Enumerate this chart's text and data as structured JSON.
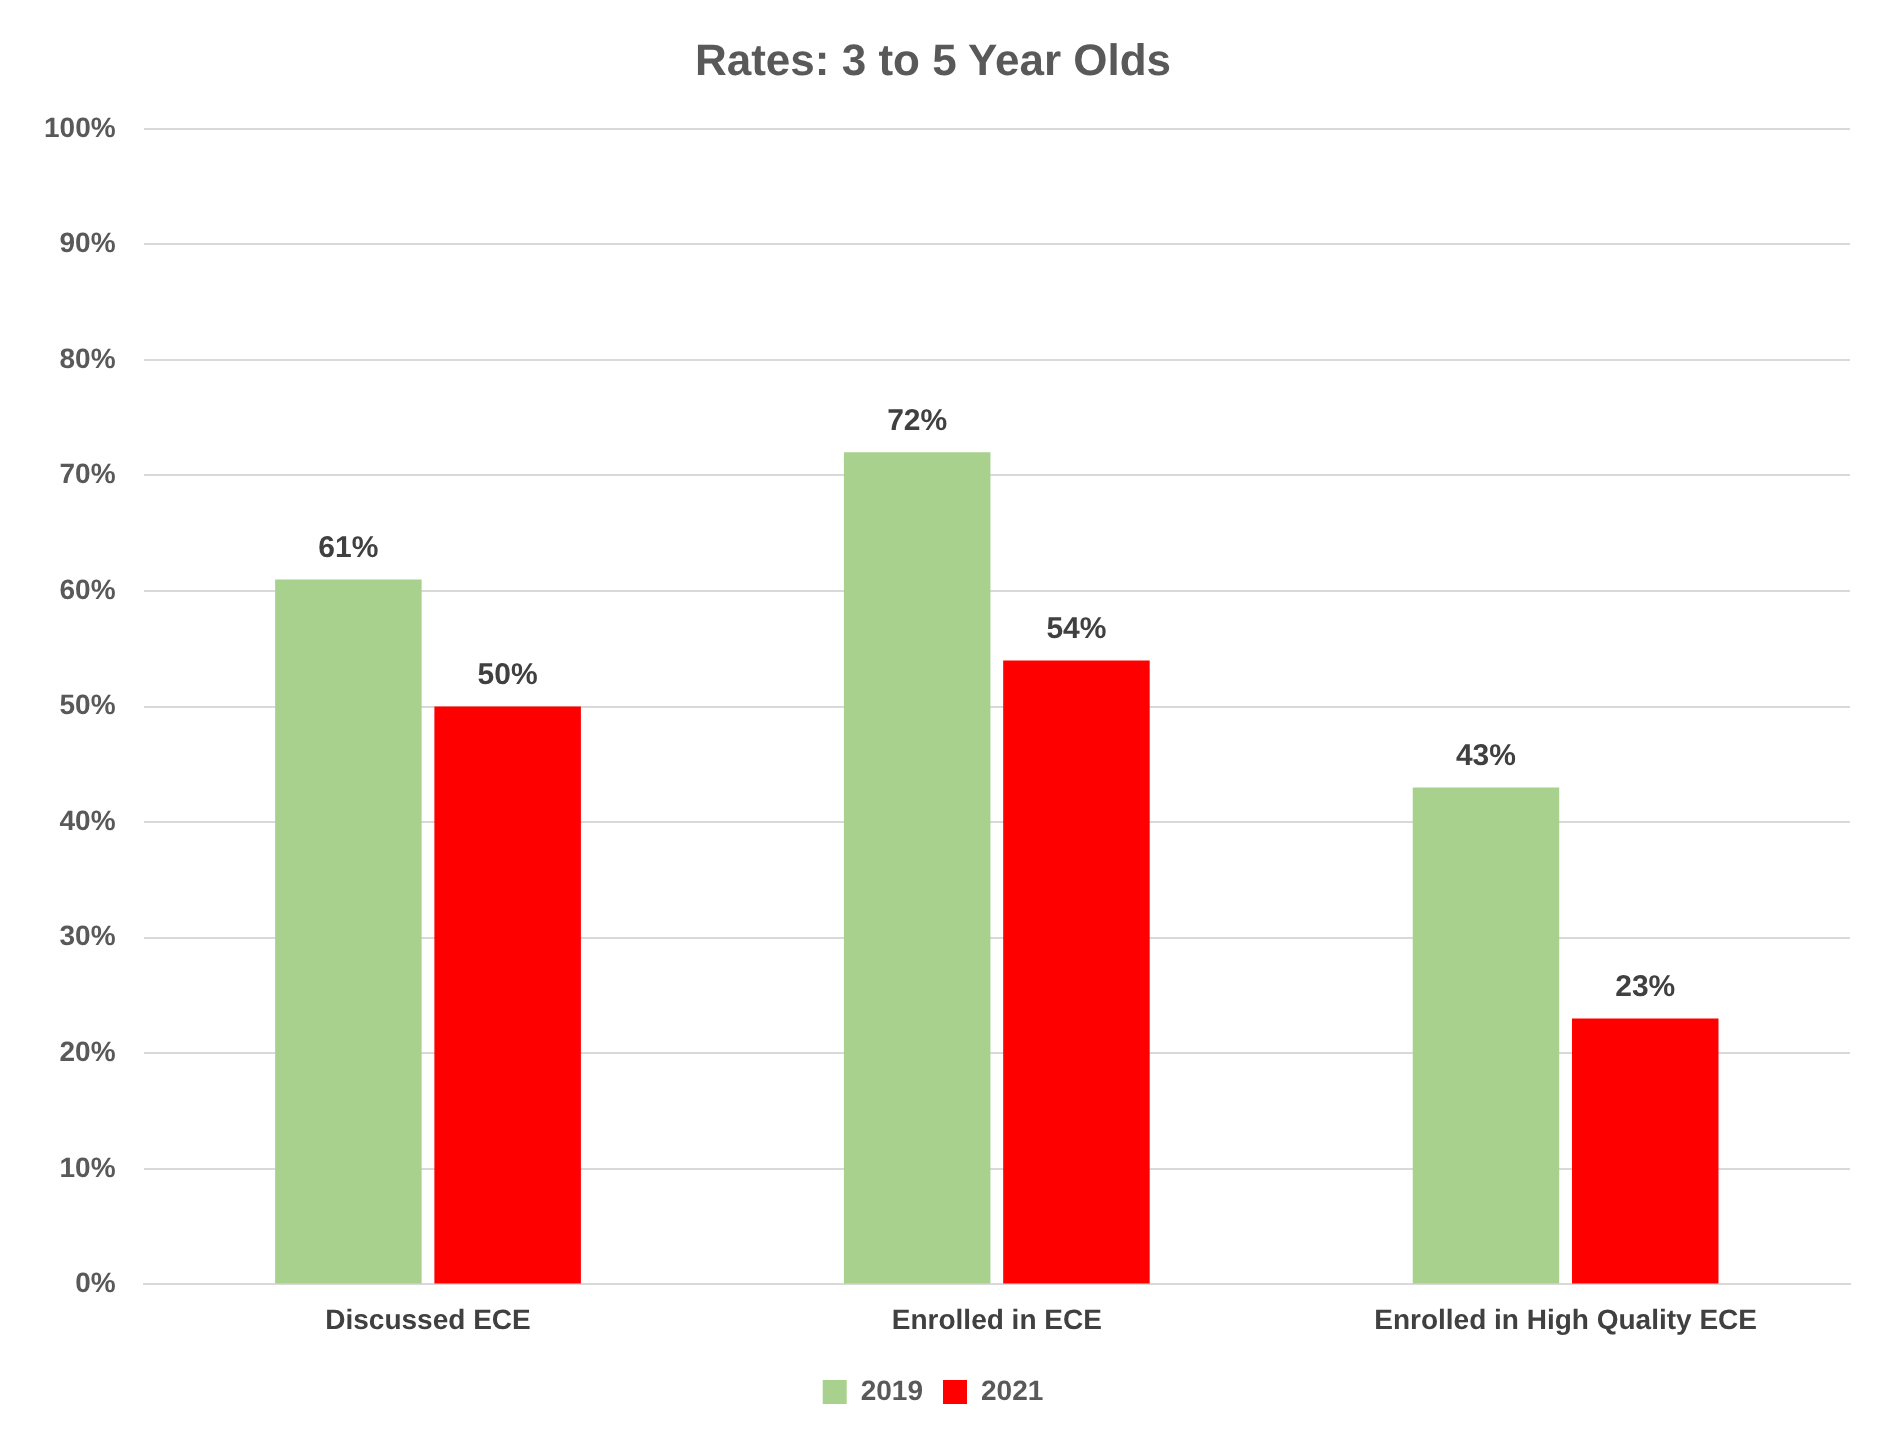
{
  "chart_data": {
    "type": "bar",
    "title": "Rates: 3 to 5 Year Olds",
    "categories": [
      "Discussed ECE",
      "Enrolled in ECE",
      "Enrolled in High Quality ECE"
    ],
    "series": [
      {
        "name": "2019",
        "color": "#a9d18e",
        "values": [
          61,
          72,
          43
        ],
        "value_labels": [
          "61%",
          "72%",
          "43%"
        ]
      },
      {
        "name": "2021",
        "color": "#ff0000",
        "values": [
          50,
          54,
          23
        ],
        "value_labels": [
          "50%",
          "54%",
          "23%"
        ]
      }
    ],
    "ylim": [
      0,
      100
    ],
    "yticks": [
      {
        "value": 0,
        "label": "0%"
      },
      {
        "value": 10,
        "label": "10%"
      },
      {
        "value": 20,
        "label": "20%"
      },
      {
        "value": 30,
        "label": "30%"
      },
      {
        "value": 40,
        "label": "40%"
      },
      {
        "value": 50,
        "label": "50%"
      },
      {
        "value": 60,
        "label": "60%"
      },
      {
        "value": 70,
        "label": "70%"
      },
      {
        "value": 80,
        "label": "80%"
      },
      {
        "value": 90,
        "label": "90%"
      },
      {
        "value": 100,
        "label": "100%"
      }
    ],
    "grid": "y",
    "legend": "bottom"
  }
}
